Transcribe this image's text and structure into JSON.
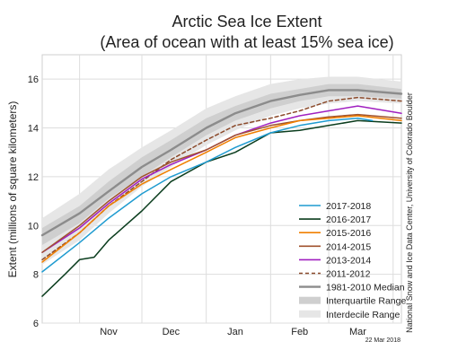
{
  "chart_data": {
    "type": "line",
    "title": "Arctic Sea Ice Extent",
    "subtitle": "(Area of ocean with at least 15% sea ice)",
    "ylabel": "Extent (millions of square kilometers)",
    "xlabel": "",
    "ylim": [
      6,
      17
    ],
    "y_ticks": [
      6,
      8,
      10,
      12,
      14,
      16
    ],
    "x_domain": [
      "2017-10-14",
      "2018-04-05"
    ],
    "x_tick_labels": [
      {
        "label": "Nov",
        "x": "2017-11-15"
      },
      {
        "label": "Dec",
        "x": "2017-12-15"
      },
      {
        "label": "Jan",
        "x": "2018-01-15"
      },
      {
        "label": "Feb",
        "x": "2018-02-15"
      },
      {
        "label": "Mar",
        "x": "2018-03-15"
      }
    ],
    "x_gridlines": [
      "2017-11-01",
      "2017-12-01",
      "2018-01-01",
      "2018-02-01",
      "2018-03-01",
      "2018-04-01"
    ],
    "grid": true,
    "legend_position": "bottom-right",
    "credit": "National Snow and Ice Data Center, University of Colorado Boulder",
    "date_stamp": "22 Mar 2018",
    "bands": [
      {
        "name": "Interdecile Range",
        "color": "#e6e6e6",
        "x": [
          "2017-10-14",
          "2017-11-01",
          "2017-11-15",
          "2017-12-01",
          "2017-12-15",
          "2018-01-01",
          "2018-01-15",
          "2018-02-01",
          "2018-02-15",
          "2018-03-01",
          "2018-03-15",
          "2018-04-05"
        ],
        "lower": [
          8.4,
          9.4,
          10.5,
          11.6,
          12.4,
          13.3,
          13.9,
          14.5,
          14.8,
          15.0,
          15.1,
          15.0
        ],
        "upper": [
          10.3,
          11.3,
          12.3,
          13.2,
          13.9,
          14.8,
          15.3,
          15.8,
          16.0,
          16.1,
          16.1,
          15.9
        ]
      },
      {
        "name": "Interquartile Range",
        "color": "#cfcfcf",
        "x": [
          "2017-10-14",
          "2017-11-01",
          "2017-11-15",
          "2017-12-01",
          "2017-12-15",
          "2018-01-01",
          "2018-01-15",
          "2018-02-01",
          "2018-02-15",
          "2018-03-01",
          "2018-03-15",
          "2018-04-05"
        ],
        "lower": [
          9.2,
          10.1,
          11.1,
          12.0,
          12.8,
          13.7,
          14.3,
          14.8,
          15.1,
          15.3,
          15.3,
          15.2
        ],
        "upper": [
          9.9,
          10.8,
          11.8,
          12.8,
          13.5,
          14.4,
          14.9,
          15.4,
          15.6,
          15.8,
          15.8,
          15.6
        ]
      }
    ],
    "series": [
      {
        "name": "1981-2010 Median",
        "color": "#8c8c8c",
        "width": 2.4,
        "dash": "",
        "x": [
          "2017-10-14",
          "2017-11-01",
          "2017-11-15",
          "2017-12-01",
          "2017-12-15",
          "2018-01-01",
          "2018-01-15",
          "2018-02-01",
          "2018-02-15",
          "2018-03-01",
          "2018-03-15",
          "2018-04-05"
        ],
        "y": [
          9.6,
          10.5,
          11.4,
          12.4,
          13.1,
          14.0,
          14.6,
          15.1,
          15.35,
          15.55,
          15.55,
          15.4
        ]
      },
      {
        "name": "2011-2012",
        "color": "#8b4a2b",
        "width": 1.5,
        "dash": "4,3",
        "x": [
          "2017-10-14",
          "2017-11-01",
          "2017-11-15",
          "2017-12-01",
          "2017-12-15",
          "2018-01-01",
          "2018-01-15",
          "2018-02-01",
          "2018-02-15",
          "2018-03-01",
          "2018-03-15",
          "2018-04-05"
        ],
        "y": [
          8.6,
          9.7,
          10.8,
          11.8,
          12.7,
          13.5,
          14.1,
          14.4,
          14.7,
          15.1,
          15.25,
          15.1
        ]
      },
      {
        "name": "2013-2014",
        "color": "#a020c0",
        "width": 1.5,
        "dash": "",
        "x": [
          "2017-10-14",
          "2017-11-01",
          "2017-11-15",
          "2017-12-01",
          "2017-12-15",
          "2018-01-01",
          "2018-01-15",
          "2018-02-01",
          "2018-02-15",
          "2018-03-01",
          "2018-03-15",
          "2018-04-05"
        ],
        "y": [
          8.9,
          9.9,
          10.9,
          11.9,
          12.5,
          13.1,
          13.7,
          14.2,
          14.5,
          14.7,
          14.9,
          14.6
        ]
      },
      {
        "name": "2014-2015",
        "color": "#a0522d",
        "width": 1.5,
        "dash": "",
        "x": [
          "2017-10-14",
          "2017-11-01",
          "2017-11-15",
          "2017-12-01",
          "2017-12-15",
          "2018-01-01",
          "2018-01-15",
          "2018-02-01",
          "2018-02-15",
          "2018-03-01",
          "2018-03-15",
          "2018-04-05"
        ],
        "y": [
          8.9,
          10.0,
          11.0,
          12.0,
          12.6,
          13.1,
          13.7,
          14.1,
          14.3,
          14.45,
          14.55,
          14.4
        ]
      },
      {
        "name": "2015-2016",
        "color": "#f07f00",
        "width": 1.5,
        "dash": "",
        "x": [
          "2017-10-14",
          "2017-11-01",
          "2017-11-15",
          "2017-12-01",
          "2017-12-15",
          "2018-01-01",
          "2018-01-15",
          "2018-02-01",
          "2018-02-15",
          "2018-03-01",
          "2018-03-15",
          "2018-04-05"
        ],
        "y": [
          8.5,
          9.7,
          10.8,
          11.7,
          12.3,
          13.0,
          13.6,
          14.0,
          14.3,
          14.4,
          14.5,
          14.3
        ]
      },
      {
        "name": "2016-2017",
        "color": "#0b3d1e",
        "width": 1.5,
        "dash": "",
        "x": [
          "2017-10-14",
          "2017-10-25",
          "2017-11-01",
          "2017-11-08",
          "2017-11-15",
          "2017-12-01",
          "2017-12-15",
          "2018-01-01",
          "2018-01-15",
          "2018-02-01",
          "2018-02-15",
          "2018-03-01",
          "2018-03-15",
          "2018-04-05"
        ],
        "y": [
          7.1,
          8.0,
          8.6,
          8.7,
          9.4,
          10.6,
          11.8,
          12.6,
          13.0,
          13.8,
          13.9,
          14.1,
          14.3,
          14.2
        ]
      },
      {
        "name": "2017-2018",
        "color": "#1f9bd0",
        "width": 1.5,
        "dash": "",
        "x": [
          "2017-10-14",
          "2017-11-01",
          "2017-11-15",
          "2017-12-01",
          "2017-12-15",
          "2018-01-01",
          "2018-01-15",
          "2018-02-01",
          "2018-02-15",
          "2018-03-01",
          "2018-03-15",
          "2018-03-22"
        ],
        "y": [
          8.1,
          9.3,
          10.3,
          11.3,
          12.0,
          12.6,
          13.2,
          13.8,
          14.1,
          14.3,
          14.4,
          14.3
        ]
      }
    ],
    "legend": [
      {
        "name": "2017-2018",
        "kind": "line",
        "color": "#1f9bd0"
      },
      {
        "name": "2016-2017",
        "kind": "line",
        "color": "#0b3d1e"
      },
      {
        "name": "2015-2016",
        "kind": "line",
        "color": "#f07f00"
      },
      {
        "name": "2014-2015",
        "kind": "line",
        "color": "#a0522d"
      },
      {
        "name": "2013-2014",
        "kind": "line",
        "color": "#a020c0"
      },
      {
        "name": "2011-2012",
        "kind": "dashed",
        "color": "#8b4a2b"
      },
      {
        "name": "1981-2010 Median",
        "kind": "thick",
        "color": "#8c8c8c"
      },
      {
        "name": "Interquartile Range",
        "kind": "band",
        "color": "#cfcfcf"
      },
      {
        "name": "Interdecile Range",
        "kind": "band",
        "color": "#e6e6e6"
      }
    ]
  }
}
